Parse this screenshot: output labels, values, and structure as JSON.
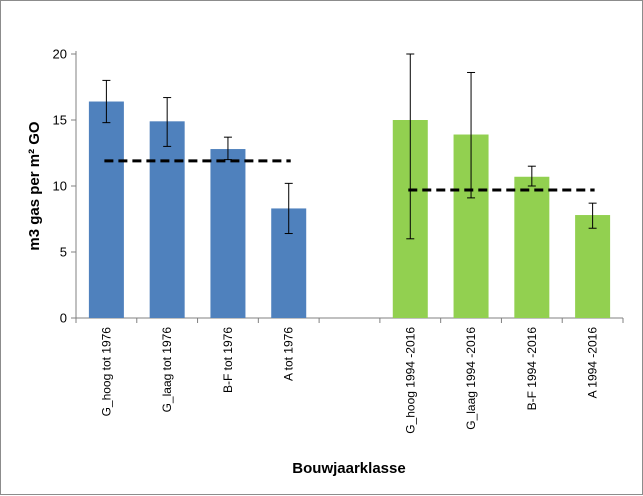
{
  "chart_data": {
    "type": "bar",
    "title": "",
    "xlabel": "Bouwjaarklasse",
    "ylabel": "m3 gas per m² GO",
    "ylim": [
      0,
      20
    ],
    "yticks": [
      0,
      5,
      10,
      15,
      20
    ],
    "grid": false,
    "legend": "none",
    "categories": [
      "G_hoog tot 1976",
      "G_laag tot 1976",
      "B-F tot 1976",
      "A tot 1976",
      "",
      "G_hoog 1994 -2016",
      "G_laag 1994 -2016",
      "B-F 1994 -2016",
      "A 1994 -2016"
    ],
    "values": [
      16.4,
      14.9,
      12.8,
      8.3,
      null,
      15.0,
      13.9,
      10.7,
      7.8
    ],
    "error_low": [
      14.8,
      13.0,
      12.0,
      6.4,
      null,
      6.0,
      9.1,
      10.0,
      6.8
    ],
    "error_high": [
      18.0,
      16.7,
      13.7,
      10.2,
      null,
      20.0,
      18.6,
      11.5,
      8.7
    ],
    "colors": [
      "#4f81bd",
      "#4f81bd",
      "#4f81bd",
      "#4f81bd",
      null,
      "#92d050",
      "#92d050",
      "#92d050",
      "#92d050"
    ],
    "averages": [
      {
        "from": 0,
        "to": 3,
        "value": 11.9
      },
      {
        "from": 5,
        "to": 8,
        "value": 9.7
      }
    ]
  }
}
